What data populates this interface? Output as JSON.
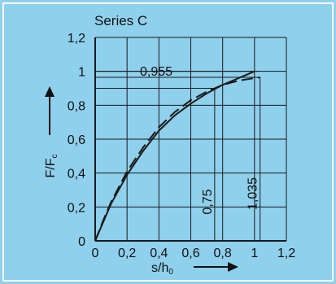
{
  "colors": {
    "background": "#8fd0ec",
    "panel_border": "#ffffff",
    "plot_fill": "#8fd0ec",
    "grid": "#1a1a1a",
    "curve": "#1a1a1a",
    "text": "#111111"
  },
  "chart_data": {
    "type": "line",
    "title": "Series C",
    "ylabel": {
      "main": "F/F",
      "sub": "c"
    },
    "xlabel": {
      "main": "s/h",
      "sub": "0"
    },
    "xlim": [
      0,
      1.2
    ],
    "ylim": [
      0,
      1.2
    ],
    "x_ticks": [
      "0",
      "0,2",
      "0,4",
      "0,6",
      "0,8",
      "1",
      "1,2"
    ],
    "y_ticks": [
      "0",
      "0,2",
      "0,4",
      "0,6",
      "0,8",
      "1",
      "1,2"
    ],
    "grid": true,
    "series": [
      {
        "style": "solid",
        "x": [
          0,
          0.05,
          0.1,
          0.2,
          0.3,
          0.4,
          0.5,
          0.6,
          0.7,
          0.75,
          0.8,
          0.9,
          1.0
        ],
        "y": [
          0,
          0.11,
          0.22,
          0.39,
          0.53,
          0.65,
          0.74,
          0.81,
          0.87,
          0.895,
          0.92,
          0.96,
          1.0
        ]
      },
      {
        "style": "dashed",
        "x": [
          0,
          0.05,
          0.1,
          0.2,
          0.3,
          0.4,
          0.5,
          0.6,
          0.7,
          0.75,
          0.8,
          0.9,
          1.0,
          1.035
        ],
        "y": [
          0,
          0.12,
          0.23,
          0.41,
          0.55,
          0.67,
          0.76,
          0.83,
          0.88,
          0.9,
          0.92,
          0.945,
          0.96,
          0.965
        ]
      }
    ],
    "annotations": {
      "horizontal": {
        "label": "0,955"
      },
      "vertical": [
        {
          "label": "0,75",
          "x": 0.75,
          "y": 0.9
        },
        {
          "label": "1,035",
          "x": 1.035,
          "y": 0.965
        }
      ]
    }
  }
}
